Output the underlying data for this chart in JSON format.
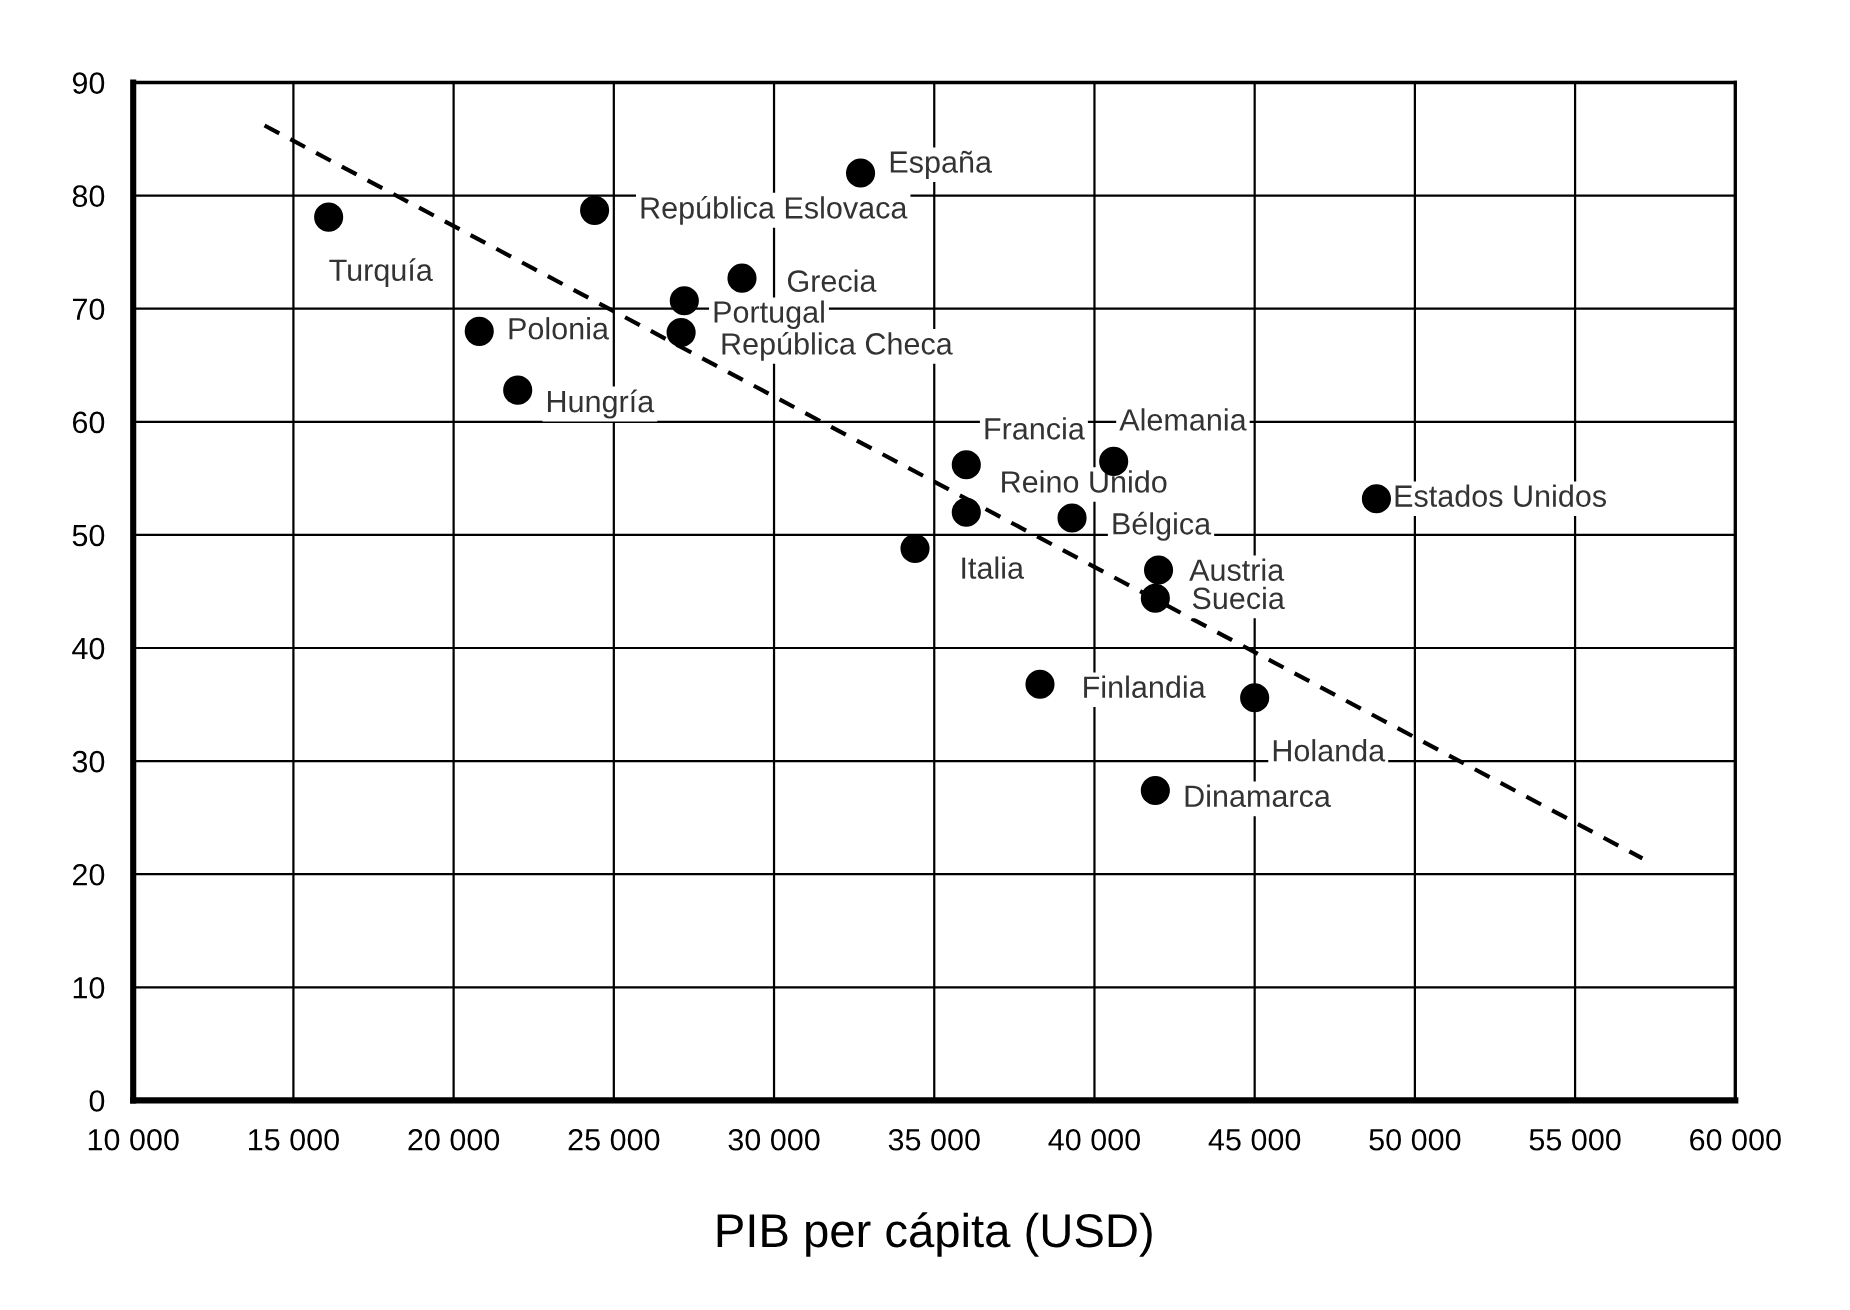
{
  "chart_data": {
    "type": "scatter",
    "xlabel": "PIB per cápita (USD)",
    "xlim": [
      10000,
      60000
    ],
    "ylim": [
      0,
      90
    ],
    "xticks": [
      {
        "value": 10000,
        "label": "10 000"
      },
      {
        "value": 15000,
        "label": "15 000"
      },
      {
        "value": 20000,
        "label": "20 000"
      },
      {
        "value": 25000,
        "label": "25 000"
      },
      {
        "value": 30000,
        "label": "30 000"
      },
      {
        "value": 35000,
        "label": "35 000"
      },
      {
        "value": 40000,
        "label": "40 000"
      },
      {
        "value": 45000,
        "label": "45 000"
      },
      {
        "value": 50000,
        "label": "50 000"
      },
      {
        "value": 55000,
        "label": "55 000"
      },
      {
        "value": 60000,
        "label": "60 000"
      }
    ],
    "yticks": [
      0,
      10,
      20,
      30,
      40,
      50,
      60,
      70,
      80,
      90
    ],
    "grid": true,
    "series": [
      {
        "color": "#000000",
        "marker": "circle",
        "x": [
          16100,
          24400,
          32700,
          29000,
          27200,
          27100,
          20800,
          22000,
          36000,
          36000,
          34400,
          40600,
          39300,
          42000,
          41900,
          38300,
          45000,
          41900,
          48800
        ],
        "values": [
          78.1,
          78.7,
          82.0,
          72.7,
          70.7,
          67.9,
          68.0,
          62.8,
          56.2,
          52.0,
          48.8,
          56.5,
          51.5,
          46.9,
          44.4,
          36.8,
          35.6,
          27.4,
          53.2
        ]
      },
      {
        "type": "line",
        "color": "#000000",
        "marker": "none",
        "line_style": "dashed",
        "x": [
          14100,
          57100
        ],
        "values": [
          86.2,
          21.4
        ]
      }
    ],
    "annotations": [
      {
        "text": "Turquía",
        "x": 16100,
        "y": 78.1
      },
      {
        "text": "República Eslovaca",
        "x": 24400,
        "y": 78.7
      },
      {
        "text": "España",
        "x": 32700,
        "y": 82.0
      },
      {
        "text": "Grecia",
        "x": 29000,
        "y": 72.7
      },
      {
        "text": "Portugal",
        "x": 27200,
        "y": 70.7
      },
      {
        "text": "República Checa",
        "x": 27100,
        "y": 67.9
      },
      {
        "text": "Polonia",
        "x": 20800,
        "y": 68.0
      },
      {
        "text": "Hungría",
        "x": 22000,
        "y": 62.8
      },
      {
        "text": "Francia",
        "x": 36000,
        "y": 56.2
      },
      {
        "text": "Reino Unido",
        "x": 36000,
        "y": 52.0
      },
      {
        "text": "Italia",
        "x": 34400,
        "y": 48.8
      },
      {
        "text": "Alemania",
        "x": 40600,
        "y": 56.5
      },
      {
        "text": "Bélgica",
        "x": 39300,
        "y": 51.5
      },
      {
        "text": "Austria",
        "x": 42000,
        "y": 46.9
      },
      {
        "text": "Suecia",
        "x": 41900,
        "y": 44.4
      },
      {
        "text": "Finlandia",
        "x": 38300,
        "y": 36.8
      },
      {
        "text": "Holanda",
        "x": 45000,
        "y": 35.6
      },
      {
        "text": "Dinamarca",
        "x": 41900,
        "y": 27.4
      },
      {
        "text": "Estados Unidos",
        "x": 48800,
        "y": 53.2
      }
    ]
  }
}
